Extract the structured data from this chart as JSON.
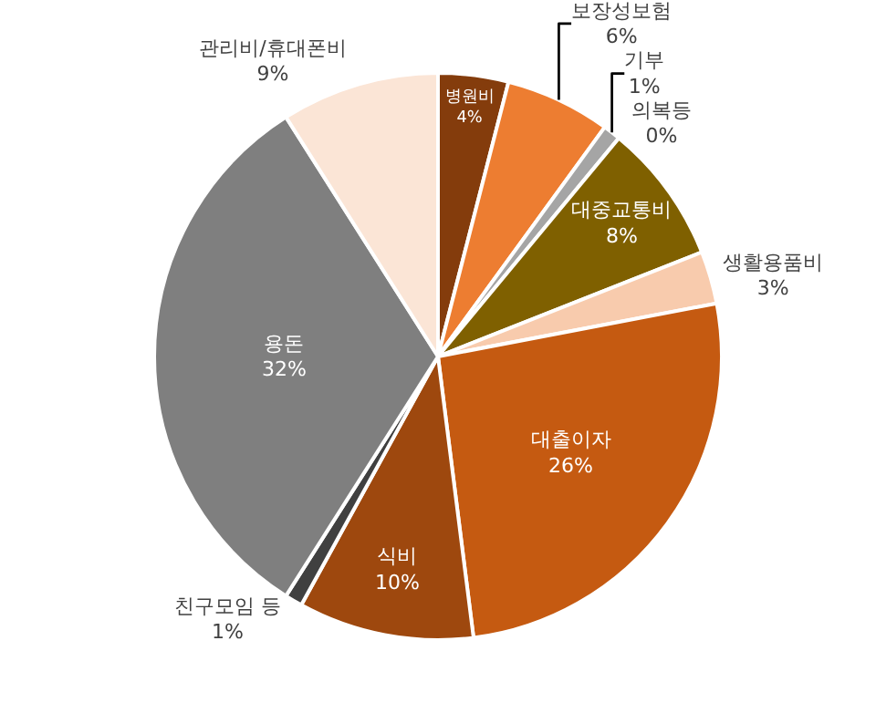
{
  "chart_data": {
    "type": "pie",
    "categories": [
      "병원비",
      "보장성보험",
      "기부",
      "의복등",
      "대중교통비",
      "생활용품비",
      "대출이자",
      "식비",
      "친구모임 등",
      "용돈",
      "관리비/휴대폰비"
    ],
    "values": [
      4,
      6,
      1,
      0,
      8,
      3,
      26,
      10,
      1,
      32,
      9
    ],
    "value_labels": [
      "4%",
      "6%",
      "1%",
      "0%",
      "8%",
      "3%",
      "26%",
      "10%",
      "1%",
      "32%",
      "9%"
    ],
    "colors": [
      "#843c0c",
      "#ed7d31",
      "#a5a5a5",
      "#d9d9d9",
      "#7f6000",
      "#f8cbad",
      "#c55a11",
      "#9e480e",
      "#404040",
      "#7f7f7f",
      "#fbe5d6"
    ],
    "legend": false
  }
}
